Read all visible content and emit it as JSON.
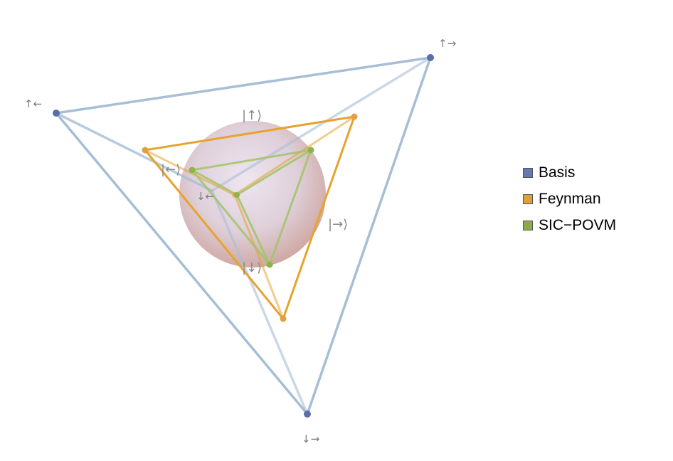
{
  "legend": [
    {
      "label": "Basis",
      "color": "#6579b0"
    },
    {
      "label": "Feynman",
      "color": "#dfa03a"
    },
    {
      "label": "SIC−POVM",
      "color": "#8eac46"
    }
  ],
  "vertex_labels": {
    "up_right": "↑→",
    "up_left": "↑←",
    "down_right": "↓→",
    "down_left": "↓←"
  },
  "kets": {
    "up": "|↑⟩",
    "left": "|←⟩",
    "right": "|→⟩",
    "down": "|↓⟩"
  },
  "colors": {
    "basis_edge": "#a6bed6",
    "basis_point": "#5a6fa8",
    "feynman_edge": "#e6a32e",
    "feynman_point": "#e0a040",
    "sic_edge": "#a3c46a",
    "sic_point": "#8fb24a"
  }
}
